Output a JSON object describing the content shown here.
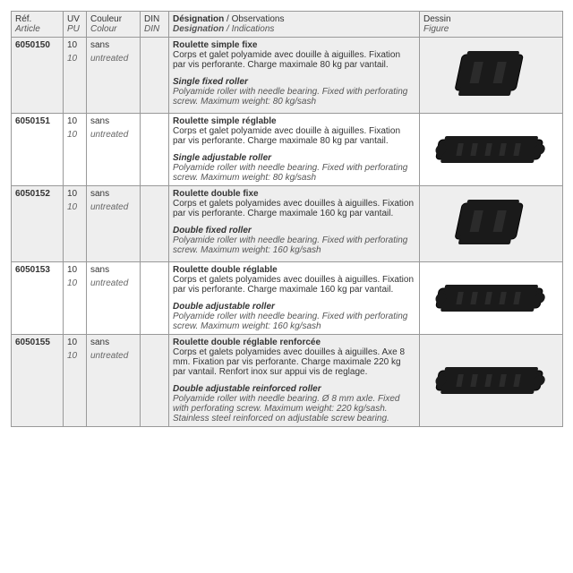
{
  "headers": {
    "ref": {
      "fr": "Réf.",
      "en": "Article"
    },
    "uv": {
      "fr": "UV",
      "en": "PU"
    },
    "color": {
      "fr": "Couleur",
      "en": "Colour"
    },
    "din": {
      "fr": "DIN",
      "en": "DIN"
    },
    "des": {
      "fr": "Désignation",
      "en": "Designation",
      "obs_fr": " / Observations",
      "obs_en": " / Indications"
    },
    "fig": {
      "fr": "Dessin",
      "en": "Figure"
    }
  },
  "rows": [
    {
      "ref": "6050150",
      "uv": "10",
      "pu": "10",
      "color_fr": "sans",
      "color_en": "untreated",
      "din": "",
      "title_fr": "Roulette simple fixe",
      "body_fr": "Corps et galet polyamide avec douille à aiguilles. Fixation par vis perforante. Charge maximale 80 kg par vantail.",
      "title_en": "Single fixed roller",
      "body_en": "Polyamide roller with needle bearing. Fixed with perforating screw. Maximum weight: 80 kg/sash",
      "shape": "block"
    },
    {
      "ref": "6050151",
      "uv": "10",
      "pu": "10",
      "color_fr": "sans",
      "color_en": "untreated",
      "din": "",
      "title_fr": "Roulette simple réglable",
      "body_fr": "Corps et galet polyamide avec douille à aiguilles. Fixation par vis perforante. Charge maximale 80 kg par vantail.",
      "title_en": "Single adjustable roller",
      "body_en": "Polyamide roller with needle bearing. Fixed with perforating screw. Maximum weight: 80 kg/sash",
      "shape": "long"
    },
    {
      "ref": "6050152",
      "uv": "10",
      "pu": "10",
      "color_fr": "sans",
      "color_en": "untreated",
      "din": "",
      "title_fr": "Roulette double fixe",
      "body_fr": "Corps et galets polyamides avec douilles à aiguilles. Fixation par vis perforante. Charge maximale 160 kg par vantail.",
      "title_en": "Double fixed roller",
      "body_en": "Polyamide roller with needle bearing. Fixed with perforating screw. Maximum weight: 160 kg/sash",
      "shape": "block"
    },
    {
      "ref": "6050153",
      "uv": "10",
      "pu": "10",
      "color_fr": "sans",
      "color_en": "untreated",
      "din": "",
      "title_fr": "Roulette double réglable",
      "body_fr": "Corps et galets polyamides avec douilles à aiguilles. Fixation par vis perforante. Charge maximale 160 kg par vantail.",
      "title_en": "Double adjustable roller",
      "body_en": "Polyamide roller with needle bearing. Fixed with perforating screw. Maximum weight: 160 kg/sash",
      "shape": "long"
    },
    {
      "ref": "6050155",
      "uv": "10",
      "pu": "10",
      "color_fr": "sans",
      "color_en": "untreated",
      "din": "",
      "title_fr": "Roulette double réglable renforcée",
      "body_fr": "Corps et galets polyamides avec douilles à aiguilles. Axe 8 mm. Fixation par vis perforante. Charge maximale 220 kg par vantail. Renfort inox sur appui vis de reglage.",
      "title_en": "Double adjustable reinforced roller",
      "body_en": "Polyamide roller with needle bearing. Ø 8 mm axle. Fixed with perforating screw. Maximum weight: 220 kg/sash. Stainless steel reinforced on adjustable screw bearing.",
      "shape": "long"
    }
  ],
  "style": {
    "shape_fill": "#1a1a1a",
    "shape_stroke": "#000000"
  }
}
